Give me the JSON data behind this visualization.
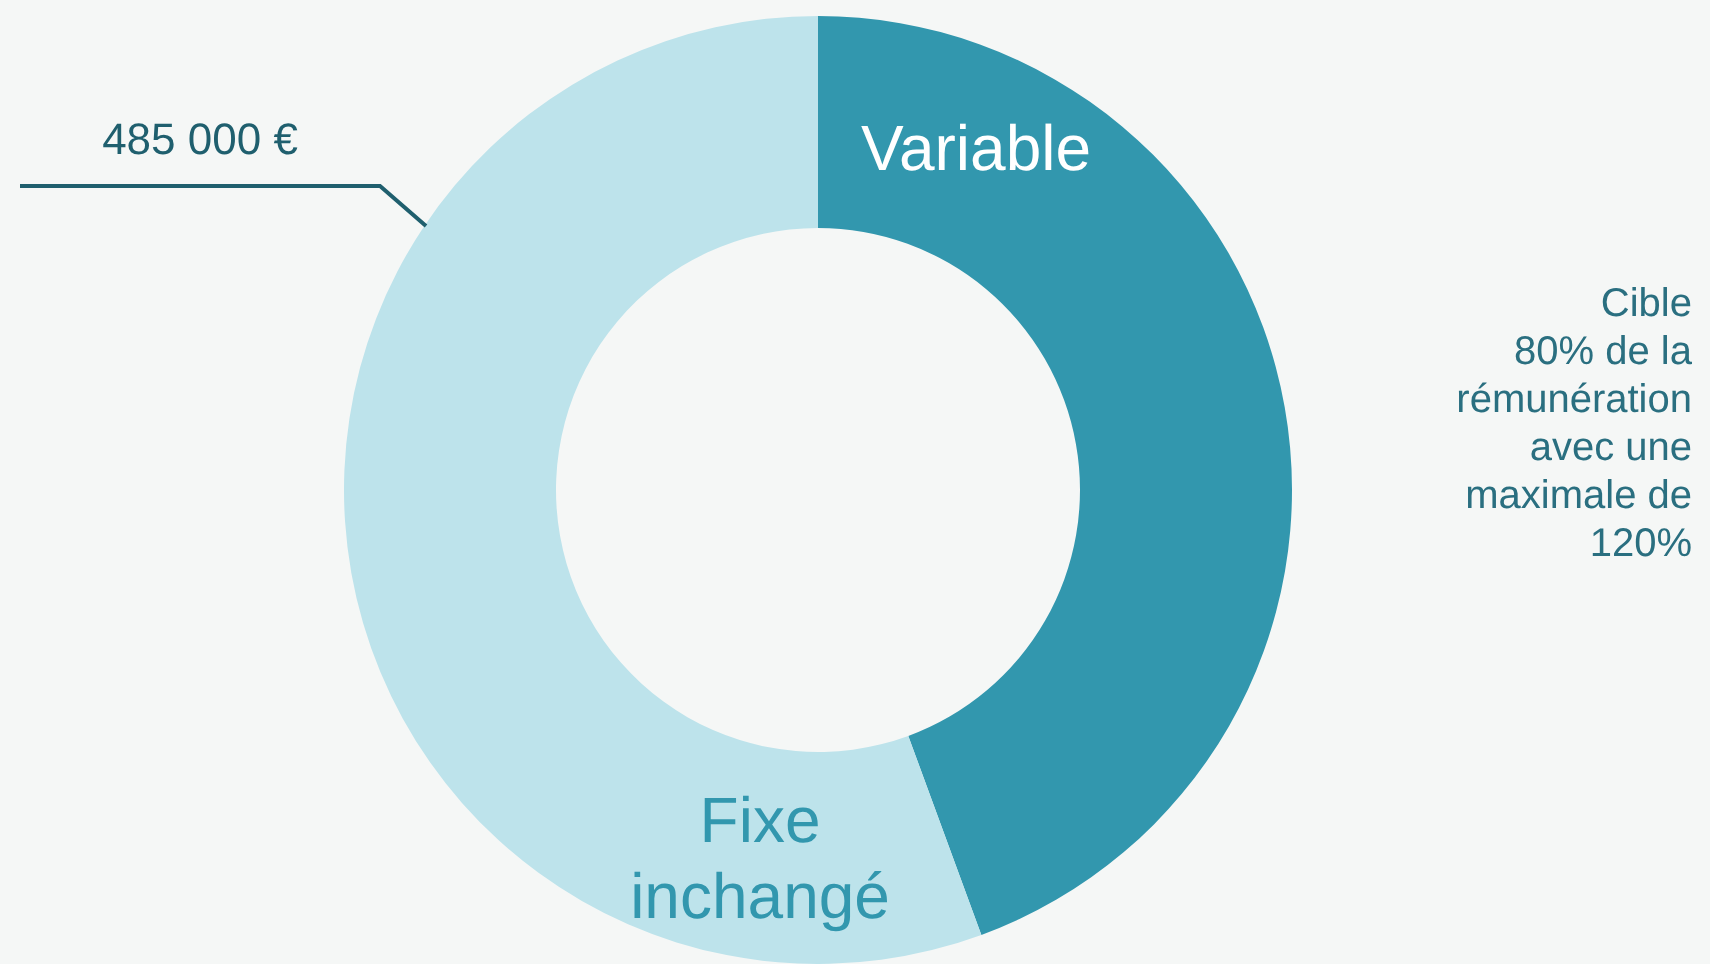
{
  "chart_data": {
    "type": "donut",
    "categories": [
      "Variable",
      "Fixe inchangé"
    ],
    "values": [
      44.4,
      55.6
    ],
    "colors": [
      "#3297ae",
      "#bde3eb"
    ],
    "annotations": [
      "485 000 €",
      "Cible\n80% de la\nrémunération\navec une\nmaximale de\n120%"
    ]
  }
}
